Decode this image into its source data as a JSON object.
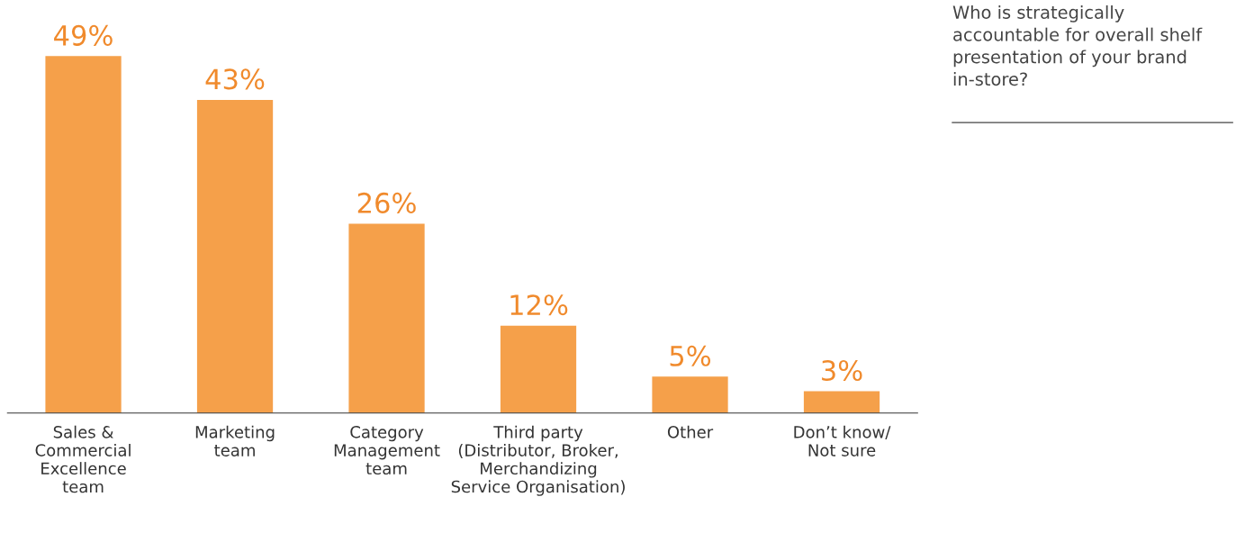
{
  "chart_data": {
    "type": "bar",
    "title": "Who is strategically\naccountable for overall shelf\npresentation of your brand\nin-store?",
    "categories": [
      "Sales &\nCommercial\nExcellence\nteam",
      "Marketing\nteam",
      "Category\nManagement\nteam",
      "Third party\n(Distributor, Broker,\nMerchandizing\nService Organisation)",
      "Other",
      "Don’t know/\nNot sure"
    ],
    "values": [
      49,
      43,
      26,
      12,
      5,
      3
    ],
    "value_labels": [
      "49%",
      "43%",
      "26%",
      "12%",
      "5%",
      "3%"
    ],
    "color": "#f5a04a",
    "grid": false
  }
}
